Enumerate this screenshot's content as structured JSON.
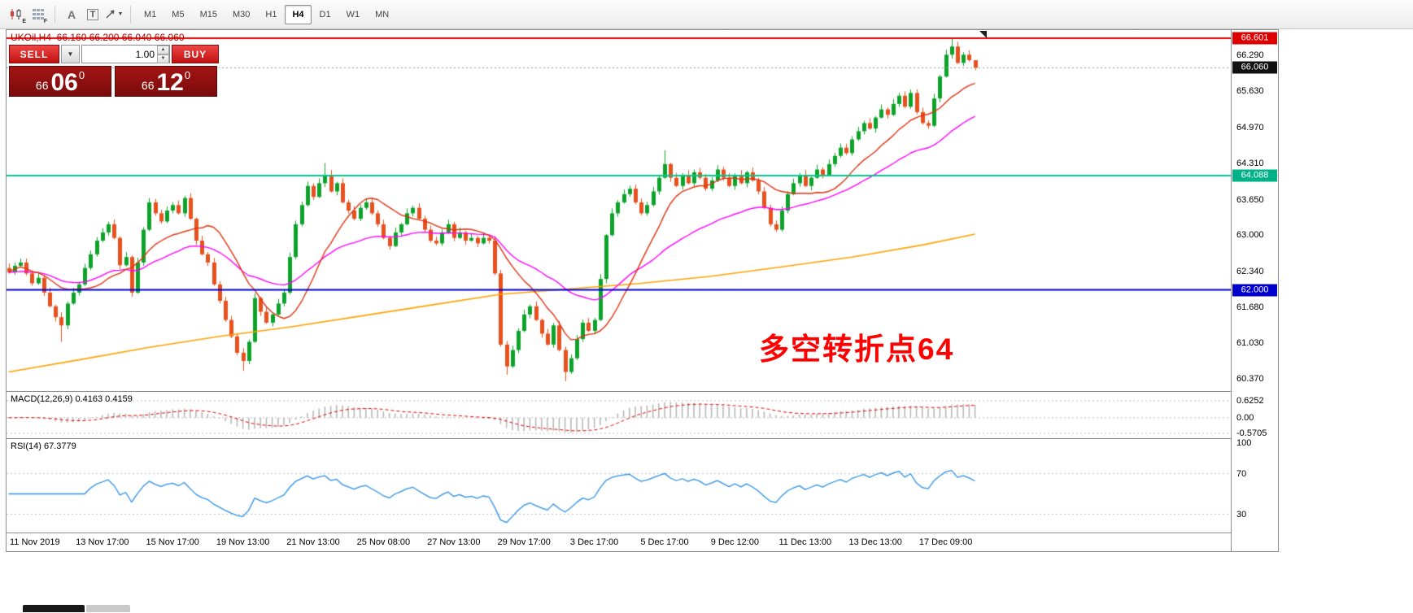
{
  "toolbar": {
    "tools": {
      "sub_e": "E",
      "sub_f": "F",
      "text_label": "A",
      "text_box": "T"
    },
    "timeframes": [
      "M1",
      "M5",
      "M15",
      "M30",
      "H1",
      "H4",
      "D1",
      "W1",
      "MN"
    ],
    "active_timeframe": "H4"
  },
  "chart": {
    "symbol_header": "UKOil,H4  66.160 66.200 66.040 66.060",
    "annotation": "多空转折点64",
    "trade_panel": {
      "sell_label": "SELL",
      "buy_label": "BUY",
      "volume": "1.00",
      "sell_price": {
        "whole": "66",
        "pips": "06",
        "frac": "0"
      },
      "buy_price": {
        "whole": "66",
        "pips": "12",
        "frac": "0"
      }
    },
    "price_axis": {
      "ticks": [
        66.29,
        65.63,
        64.97,
        64.31,
        63.65,
        63.0,
        62.34,
        61.68,
        61.03,
        60.37
      ],
      "boxes": [
        {
          "label": "66.601",
          "value": 66.601,
          "bg": "#dd0000"
        },
        {
          "label": "66.060",
          "value": 66.06,
          "bg": "#111111"
        },
        {
          "label": "64.088",
          "value": 64.088,
          "bg": "#00b287"
        },
        {
          "label": "62.000",
          "value": 62.0,
          "bg": "#0000cc"
        }
      ]
    },
    "time_axis": [
      "11 Nov 2019",
      "13 Nov 17:00",
      "15 Nov 17:00",
      "19 Nov 13:00",
      "21 Nov 13:00",
      "25 Nov 08:00",
      "27 Nov 13:00",
      "29 Nov 17:00",
      "3 Dec 17:00",
      "5 Dec 17:00",
      "9 Dec 12:00",
      "11 Dec 13:00",
      "13 Dec 13:00",
      "17 Dec 09:00"
    ]
  },
  "macd_panel": {
    "header": "MACD(12,26,9) 0.4163 0.4159",
    "tick_labels": [
      "0.6252",
      "0.00",
      "-0.5705"
    ]
  },
  "rsi_panel": {
    "header": "RSI(14) 67.3779",
    "tick_labels": [
      "100",
      "70",
      "30"
    ]
  },
  "chart_data": {
    "type": "candlestick",
    "symbol": "UKOil",
    "timeframe": "H4",
    "last_ohlc": {
      "open": 66.16,
      "high": 66.2,
      "low": 66.04,
      "close": 66.06
    },
    "price_range": [
      60.15,
      66.75
    ],
    "closes": [
      62.32,
      62.44,
      62.5,
      62.3,
      62.12,
      62.22,
      61.95,
      61.7,
      61.5,
      61.35,
      61.75,
      61.95,
      62.1,
      62.4,
      62.65,
      62.9,
      63.05,
      63.2,
      62.95,
      62.45,
      62.6,
      61.95,
      62.5,
      63.1,
      63.6,
      63.4,
      63.25,
      63.45,
      63.55,
      63.4,
      63.68,
      63.3,
      62.9,
      62.65,
      62.5,
      62.1,
      61.8,
      61.45,
      61.15,
      60.85,
      60.7,
      61.05,
      61.85,
      61.6,
      61.4,
      61.55,
      61.75,
      61.95,
      62.6,
      63.2,
      63.55,
      63.9,
      63.7,
      63.95,
      64.1,
      63.8,
      63.95,
      63.6,
      63.45,
      63.3,
      63.5,
      63.6,
      63.4,
      63.2,
      62.95,
      62.8,
      63.05,
      63.2,
      63.4,
      63.5,
      63.3,
      63.1,
      62.9,
      62.85,
      63.05,
      63.2,
      62.95,
      63.05,
      62.9,
      62.95,
      62.85,
      62.95,
      62.9,
      62.3,
      61.0,
      60.6,
      60.9,
      61.25,
      61.55,
      61.7,
      61.45,
      61.2,
      61.0,
      61.35,
      60.9,
      60.5,
      60.75,
      61.1,
      61.4,
      61.25,
      61.45,
      62.2,
      63.0,
      63.4,
      63.6,
      63.75,
      63.85,
      63.6,
      63.4,
      63.55,
      63.8,
      64.05,
      64.3,
      64.05,
      63.9,
      64.1,
      63.95,
      64.15,
      64.05,
      63.85,
      64.0,
      64.2,
      64.05,
      63.9,
      64.1,
      63.95,
      64.15,
      64.0,
      63.8,
      63.5,
      63.2,
      63.1,
      63.45,
      63.75,
      63.95,
      64.1,
      63.9,
      64.05,
      64.2,
      64.1,
      64.3,
      64.45,
      64.6,
      64.5,
      64.75,
      64.9,
      65.05,
      64.95,
      65.15,
      65.3,
      65.2,
      65.4,
      65.55,
      65.35,
      65.6,
      65.25,
      65.05,
      65.0,
      65.5,
      65.9,
      66.3,
      66.45,
      66.15,
      66.3,
      66.2,
      66.06
    ],
    "wick_overrides": {
      "9": {
        "l": 61.05
      },
      "40": {
        "l": 60.52
      },
      "54": {
        "h": 64.32
      },
      "85": {
        "l": 60.45
      },
      "95": {
        "l": 60.33
      },
      "112": {
        "h": 64.55
      },
      "161": {
        "h": 66.6
      },
      "165": {
        "h": 66.18
      }
    },
    "colors": {
      "up": "#0da32a",
      "down": "#e8501e",
      "fast_ma": "#e03210",
      "mid_ma": "#ff00ff",
      "slow_ma": "#ffa200",
      "rsi": "#2a8fe8",
      "macd_hist": "#b4b4b4",
      "macd_signal": "#e00000"
    },
    "fast_ma_period": 13,
    "mid_ma_period": 34,
    "slow_ma_points": [
      [
        0,
        60.5
      ],
      [
        12,
        60.72
      ],
      [
        24,
        60.95
      ],
      [
        36,
        61.15
      ],
      [
        48,
        61.32
      ],
      [
        60,
        61.52
      ],
      [
        72,
        61.72
      ],
      [
        84,
        61.92
      ],
      [
        96,
        62.02
      ],
      [
        108,
        62.12
      ],
      [
        120,
        62.25
      ],
      [
        132,
        62.42
      ],
      [
        144,
        62.6
      ],
      [
        156,
        62.82
      ],
      [
        165,
        63.02
      ]
    ],
    "hlines": [
      {
        "price": 66.601,
        "color": "#dd0000",
        "width": 2
      },
      {
        "price": 64.088,
        "color": "#00c98c",
        "width": 2
      },
      {
        "price": 62.0,
        "color": "#0000cc",
        "width": 2
      }
    ],
    "bid_line": {
      "price": 66.06
    },
    "macd": {
      "params": [
        12,
        26,
        9
      ],
      "range": [
        -0.75,
        0.95
      ],
      "levels": [
        0.6252,
        0,
        -0.5705
      ],
      "last_values": [
        0.4163,
        0.4159
      ]
    },
    "rsi": {
      "period": 14,
      "range": [
        12,
        104
      ],
      "levels": [
        100,
        70,
        30
      ],
      "last_value": 67.3779
    },
    "x_label_step": 12,
    "x_label_first": 4
  }
}
